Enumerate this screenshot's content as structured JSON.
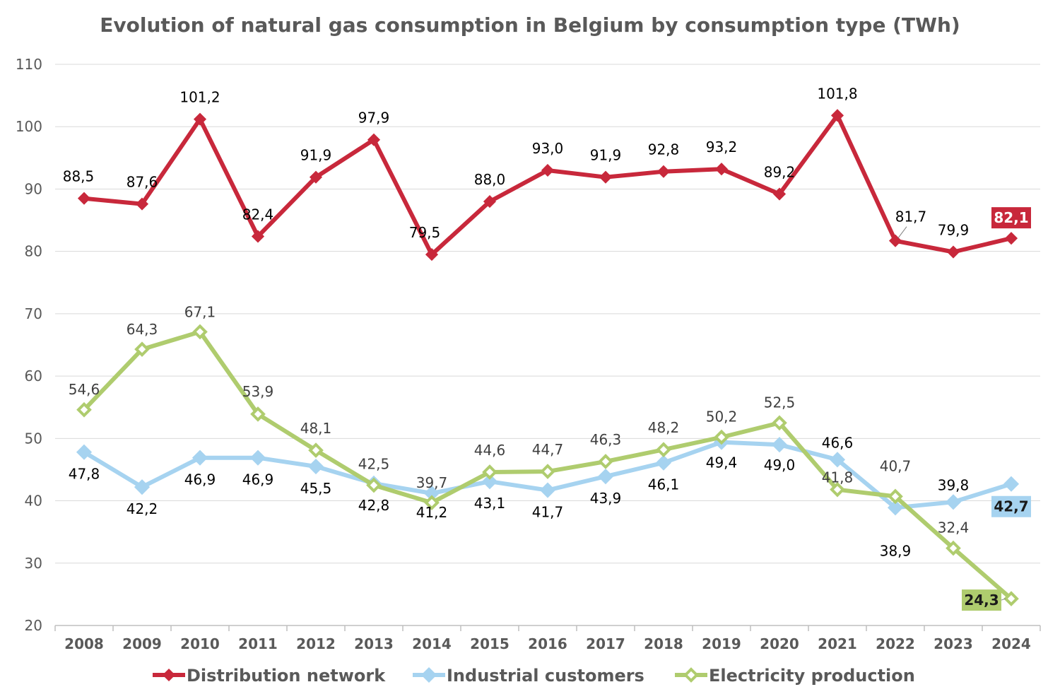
{
  "chart_data": {
    "type": "line",
    "title": "Evolution of natural gas consumption in Belgium by consumption type (TWh)",
    "xlabel": "",
    "ylabel": "",
    "ylim": [
      20,
      110
    ],
    "yticks": [
      "20",
      "30",
      "40",
      "50",
      "60",
      "70",
      "80",
      "90",
      "100",
      "110"
    ],
    "grid": true,
    "legend_position": "bottom",
    "categories": [
      "2008",
      "2009",
      "2010",
      "2011",
      "2012",
      "2013",
      "2014",
      "2015",
      "2016",
      "2017",
      "2018",
      "2019",
      "2020",
      "2021",
      "2022",
      "2023",
      "2024"
    ],
    "series": [
      {
        "name": "Distribution network",
        "color": "#C8283B",
        "marker": "diamond-filled",
        "values": [
          88.5,
          87.6,
          101.2,
          82.4,
          91.9,
          97.9,
          79.5,
          88.0,
          93.0,
          91.9,
          92.8,
          93.2,
          89.2,
          101.8,
          81.7,
          79.9,
          82.1
        ],
        "labels": [
          "88,5",
          "87,6",
          "101,2",
          "82,4",
          "91,9",
          "97,9",
          "79,5",
          "88,0",
          "93,0",
          "91,9",
          "92,8",
          "93,2",
          "89,2",
          "101,8",
          "81,7",
          "79,9",
          "82,1"
        ]
      },
      {
        "name": "Industrial customers",
        "color": "#A6D3F0",
        "marker": "diamond-filled",
        "values": [
          47.8,
          42.2,
          46.9,
          46.9,
          45.5,
          42.8,
          41.2,
          43.1,
          41.7,
          43.9,
          46.1,
          49.4,
          49.0,
          46.6,
          38.9,
          39.8,
          42.7
        ],
        "labels": [
          "47,8",
          "42,2",
          "46,9",
          "46,9",
          "45,5",
          "42,8",
          "41,2",
          "43,1",
          "41,7",
          "43,9",
          "46,1",
          "49,4",
          "49,0",
          "46,6",
          "38,9",
          "39,8",
          "42,7"
        ]
      },
      {
        "name": "Electricity production",
        "color": "#AFCC6E",
        "marker": "diamond-hollow",
        "values": [
          54.6,
          64.3,
          67.1,
          53.9,
          48.1,
          42.5,
          39.7,
          44.6,
          44.7,
          46.3,
          48.2,
          50.2,
          52.5,
          41.8,
          40.7,
          32.4,
          24.3
        ],
        "labels": [
          "54,6",
          "64,3",
          "67,1",
          "53,9",
          "48,1",
          "42,5",
          "39,7",
          "44,6",
          "44,7",
          "46,3",
          "48,2",
          "50,2",
          "52,5",
          "41,8",
          "40,7",
          "32,4",
          "24,3"
        ]
      }
    ]
  }
}
